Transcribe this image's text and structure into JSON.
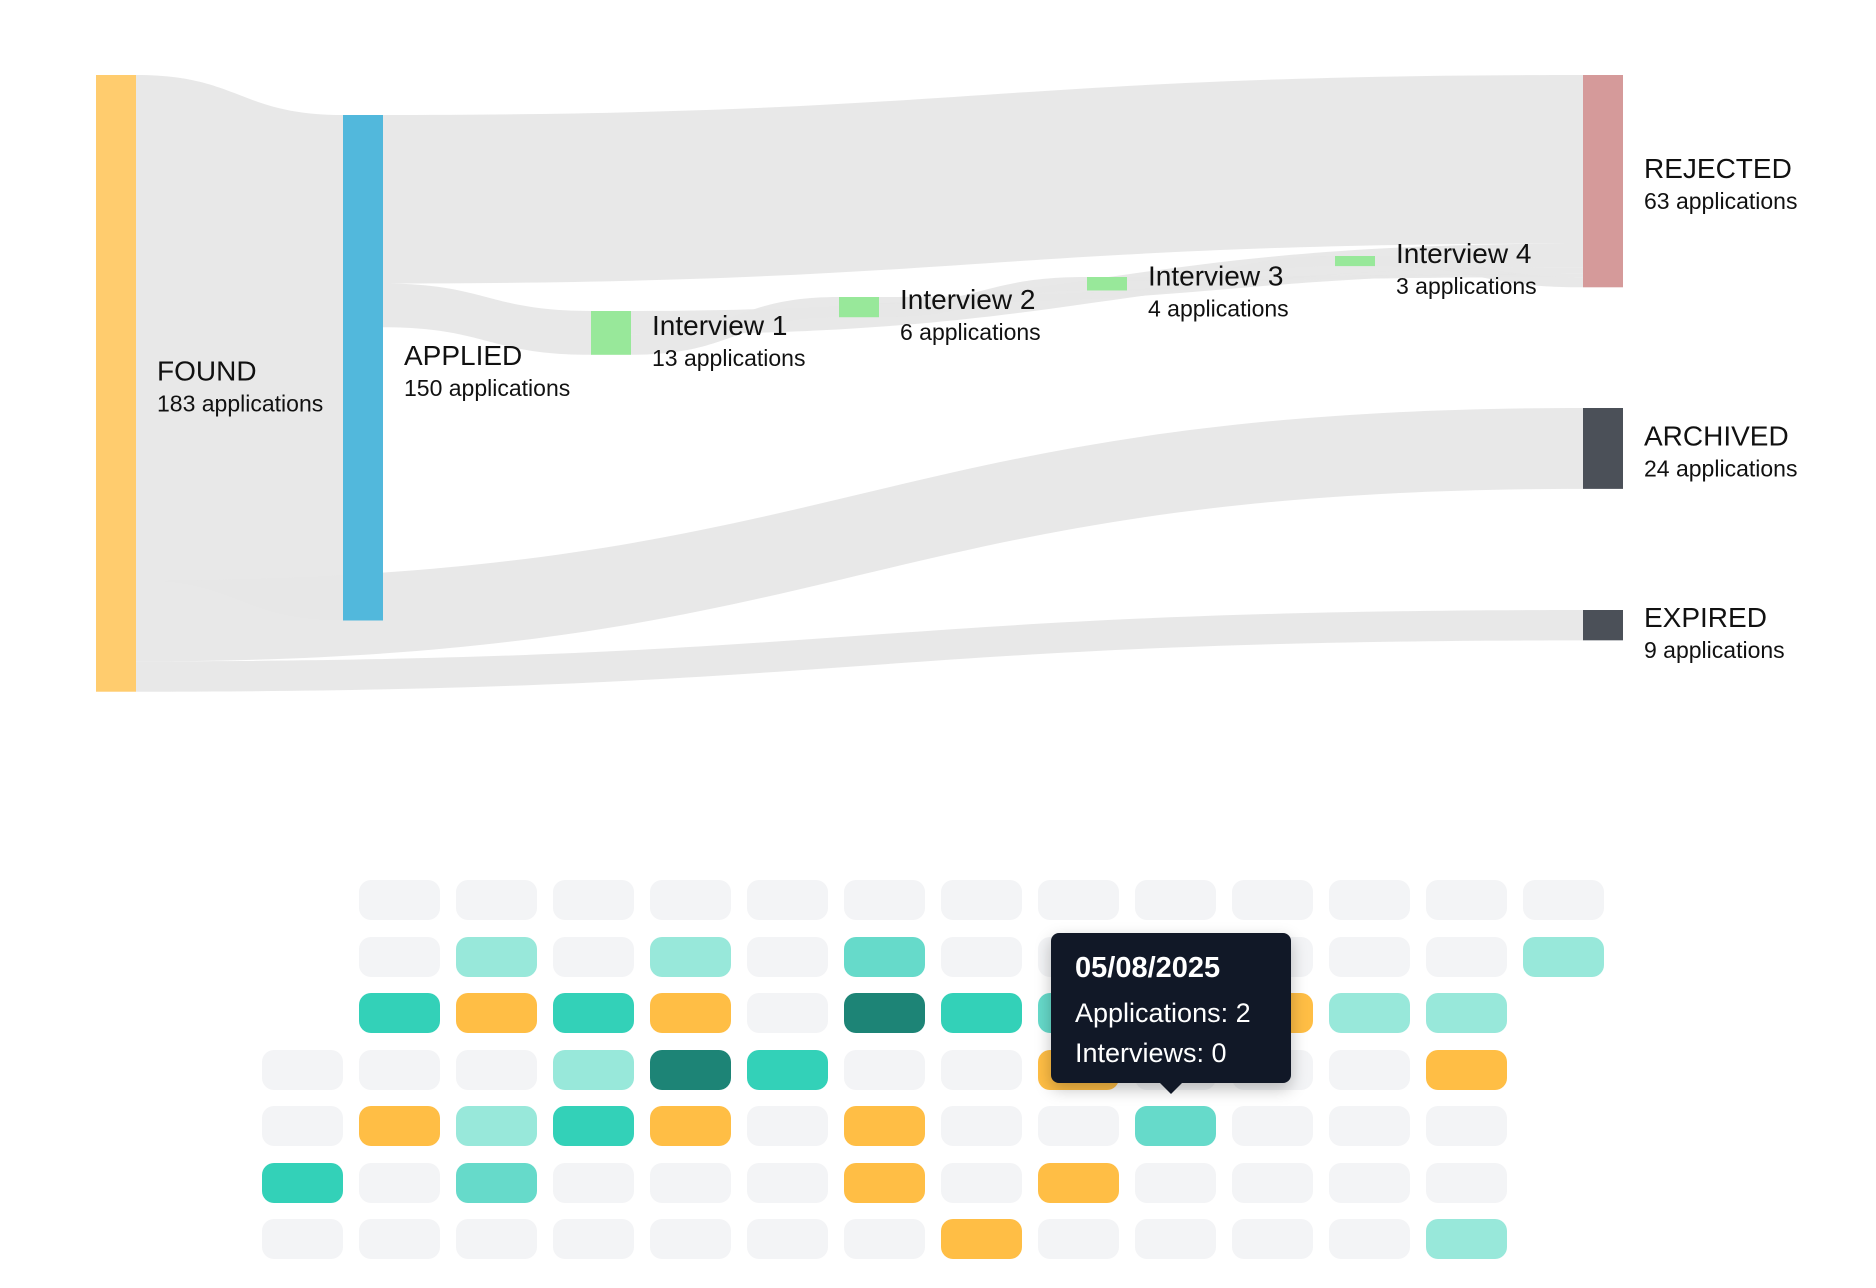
{
  "chart_data": [
    {
      "type": "sankey",
      "nodes": [
        {
          "id": "found",
          "name": "FOUND",
          "count_label": "183 applications",
          "value": 183,
          "color": "#FFCC6E"
        },
        {
          "id": "applied",
          "name": "APPLIED",
          "count_label": "150 applications",
          "value": 150,
          "color": "#52B8DC"
        },
        {
          "id": "i1",
          "name": "Interview 1",
          "count_label": "13 applications",
          "value": 13,
          "color": "#98E89A"
        },
        {
          "id": "i2",
          "name": "Interview 2",
          "count_label": "6 applications",
          "value": 6,
          "color": "#98E89A"
        },
        {
          "id": "i3",
          "name": "Interview 3",
          "count_label": "4 applications",
          "value": 4,
          "color": "#98E89A"
        },
        {
          "id": "i4",
          "name": "Interview 4",
          "count_label": "3 applications",
          "value": 3,
          "color": "#98E89A"
        },
        {
          "id": "rejected",
          "name": "REJECTED",
          "count_label": "63 applications",
          "value": 63,
          "color": "#D59A9A"
        },
        {
          "id": "archived",
          "name": "ARCHIVED",
          "count_label": "24 applications",
          "value": 24,
          "color": "#4B5058"
        },
        {
          "id": "expired",
          "name": "EXPIRED",
          "count_label": "9 applications",
          "value": 9,
          "color": "#4B5058"
        }
      ],
      "links": [
        {
          "source": "found",
          "target": "applied",
          "value": 150
        },
        {
          "source": "found",
          "target": "archived",
          "value": 24
        },
        {
          "source": "found",
          "target": "expired",
          "value": 9
        },
        {
          "source": "applied",
          "target": "rejected",
          "value": 50
        },
        {
          "source": "applied",
          "target": "i1",
          "value": 13
        },
        {
          "source": "i1",
          "target": "rejected",
          "value": 7
        },
        {
          "source": "i1",
          "target": "i2",
          "value": 6
        },
        {
          "source": "i2",
          "target": "rejected",
          "value": 2
        },
        {
          "source": "i2",
          "target": "i3",
          "value": 4
        },
        {
          "source": "i3",
          "target": "rejected",
          "value": 1
        },
        {
          "source": "i3",
          "target": "i4",
          "value": 3
        },
        {
          "source": "i4",
          "target": "rejected",
          "value": 3
        }
      ],
      "link_color": "#E6E6E6"
    },
    {
      "type": "heatmap",
      "legend": {
        "0": "#F3F4F6",
        "1": "#98E8DA",
        "2": "#66DACA",
        "3": "#33D1B8",
        "4": "#1D8476",
        "interview": "#FFBE45"
      },
      "rows": [
        [
          null,
          0,
          0,
          0,
          0,
          0,
          0,
          0,
          0,
          0,
          0,
          0,
          0,
          0
        ],
        [
          null,
          0,
          1,
          0,
          1,
          0,
          2,
          0,
          0,
          0,
          0,
          0,
          0,
          1
        ],
        [
          null,
          3,
          "interview",
          3,
          "interview",
          0,
          4,
          3,
          2,
          0,
          "interview",
          1,
          1,
          null
        ],
        [
          0,
          0,
          0,
          1,
          4,
          3,
          0,
          0,
          "interview",
          0,
          0,
          0,
          "interview",
          null
        ],
        [
          0,
          "interview",
          1,
          3,
          "interview",
          0,
          "interview",
          0,
          0,
          2,
          0,
          0,
          0,
          null
        ],
        [
          3,
          0,
          2,
          0,
          0,
          0,
          "interview",
          0,
          "interview",
          0,
          0,
          0,
          0,
          null
        ],
        [
          0,
          0,
          0,
          0,
          0,
          0,
          0,
          "interview",
          0,
          0,
          0,
          0,
          1,
          null
        ]
      ],
      "tooltip": {
        "date": "05/08/2025",
        "applications": "Applications: 2",
        "interviews": "Interviews: 0"
      }
    }
  ]
}
